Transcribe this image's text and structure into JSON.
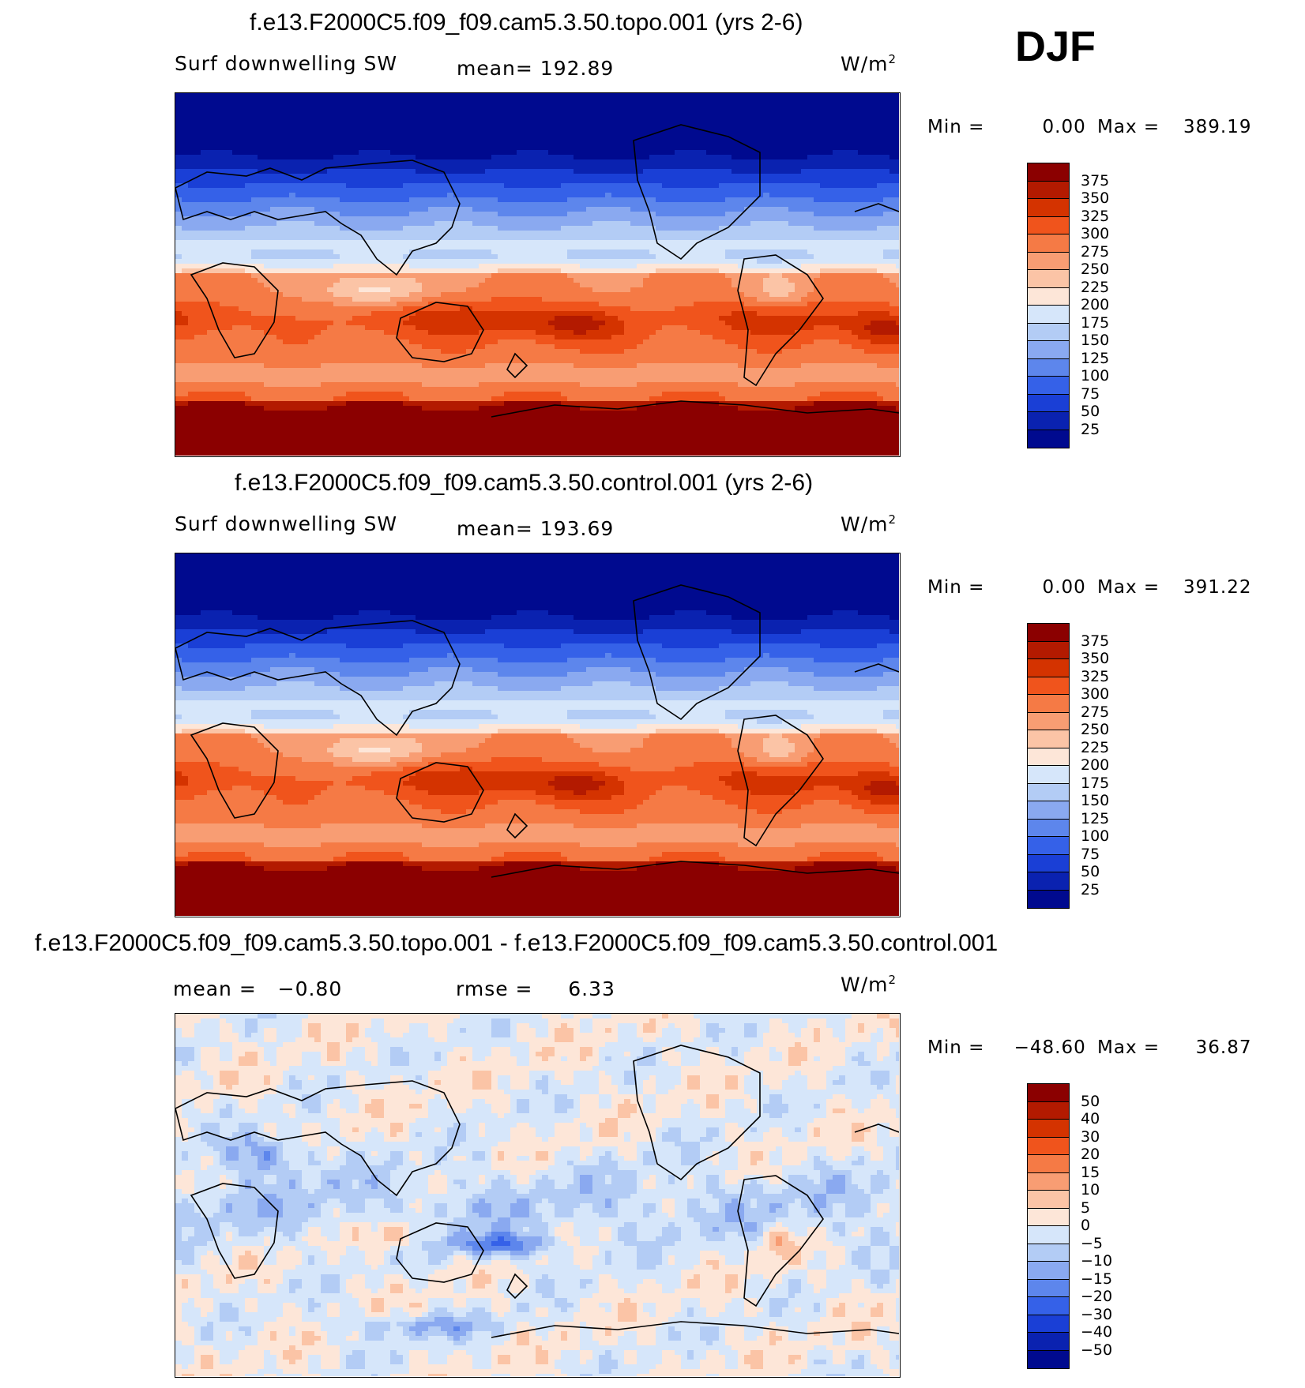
{
  "season": "DJF",
  "panels": [
    {
      "title": "f.e13.F2000C5.f09_f09.cam5.3.50.topo.001 (yrs 2-6)",
      "left_label": "Surf downwelling SW",
      "center_label": "mean= 192.89",
      "units_base": "W/m",
      "units_exp": "2",
      "min_label": "Min =",
      "min_value": "0.00",
      "max_label": "Max =",
      "max_value": "389.19",
      "levels": [
        "375",
        "350",
        "325",
        "300",
        "275",
        "250",
        "225",
        "200",
        "175",
        "150",
        "125",
        "100",
        "75",
        "50",
        "25"
      ],
      "colors": [
        "#8b0000",
        "#b31a00",
        "#d43300",
        "#f0541c",
        "#f57a45",
        "#f89d73",
        "#fbc4a6",
        "#fde6d8",
        "#d6e6fa",
        "#b3ccf5",
        "#8aa9f0",
        "#5d86ec",
        "#3561e8",
        "#1a3fd6",
        "#0a22b0",
        "#000a8f"
      ],
      "field": "abs"
    },
    {
      "title": "f.e13.F2000C5.f09_f09.cam5.3.50.control.001 (yrs 2-6)",
      "left_label": "Surf downwelling SW",
      "center_label": "mean= 193.69",
      "units_base": "W/m",
      "units_exp": "2",
      "min_label": "Min =",
      "min_value": "0.00",
      "max_label": "Max =",
      "max_value": "391.22",
      "levels": [
        "375",
        "350",
        "325",
        "300",
        "275",
        "250",
        "225",
        "200",
        "175",
        "150",
        "125",
        "100",
        "75",
        "50",
        "25"
      ],
      "colors": [
        "#8b0000",
        "#b31a00",
        "#d43300",
        "#f0541c",
        "#f57a45",
        "#f89d73",
        "#fbc4a6",
        "#fde6d8",
        "#d6e6fa",
        "#b3ccf5",
        "#8aa9f0",
        "#5d86ec",
        "#3561e8",
        "#1a3fd6",
        "#0a22b0",
        "#000a8f"
      ],
      "field": "abs"
    },
    {
      "title": "f.e13.F2000C5.f09_f09.cam5.3.50.topo.001 - f.e13.F2000C5.f09_f09.cam5.3.50.control.001",
      "left_label": "mean =   −0.80",
      "center_label": "rmse =     6.33",
      "units_base": "W/m",
      "units_exp": "2",
      "min_label": "Min =",
      "min_value": "−48.60",
      "max_label": "Max =",
      "max_value": "36.87",
      "levels": [
        "50",
        "40",
        "30",
        "20",
        "15",
        "10",
        "5",
        "0",
        "−5",
        "−10",
        "−15",
        "−20",
        "−30",
        "−40",
        "−50"
      ],
      "colors": [
        "#8b0000",
        "#b31a00",
        "#d43300",
        "#f0541c",
        "#f57a45",
        "#f89d73",
        "#fbc4a6",
        "#fde6d8",
        "#d6e6fa",
        "#b3ccf5",
        "#8aa9f0",
        "#5d86ec",
        "#3561e8",
        "#1a3fd6",
        "#0a22b0",
        "#000a8f"
      ],
      "field": "diff"
    }
  ]
}
